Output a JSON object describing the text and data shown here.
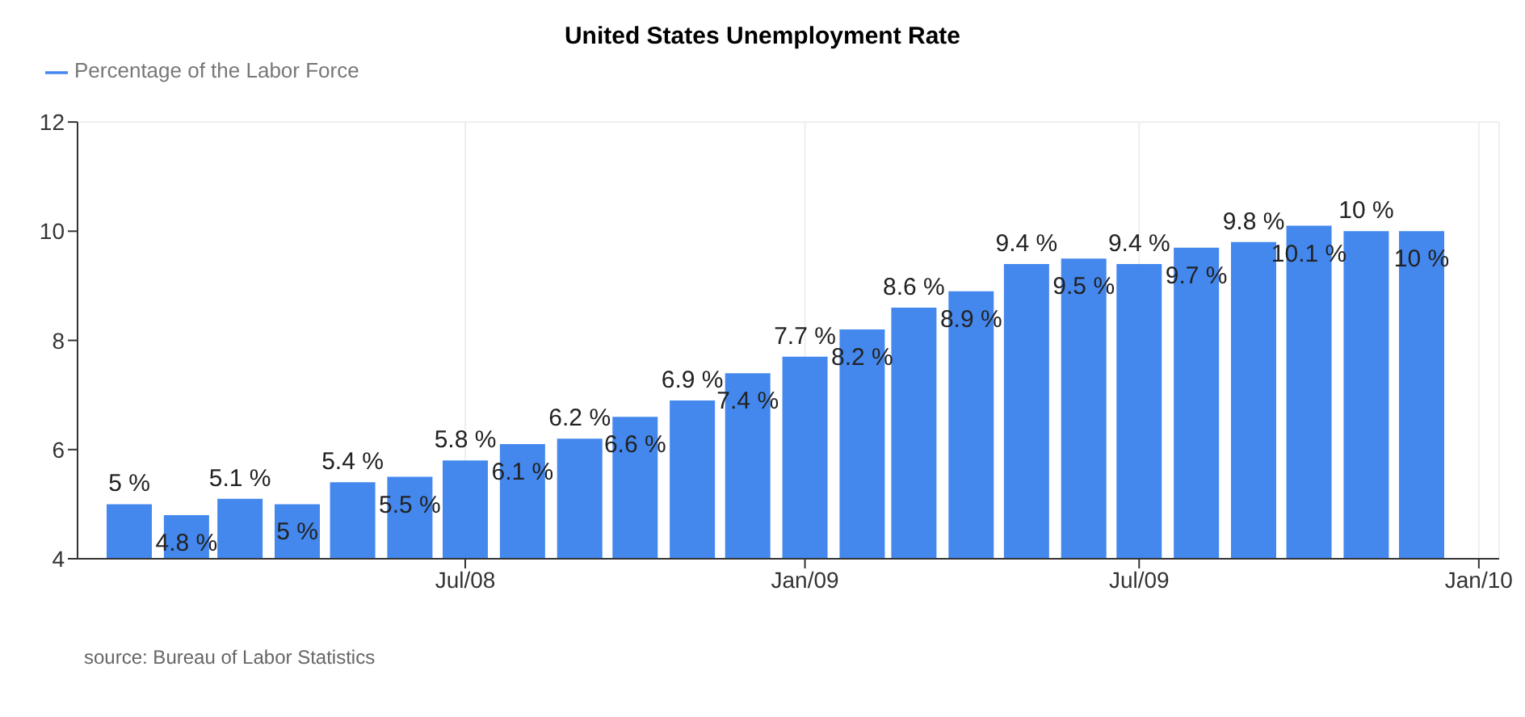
{
  "chart_data": {
    "type": "bar",
    "title": "United States Unemployment Rate",
    "x": [
      "2008-01",
      "2008-02",
      "2008-03",
      "2008-04",
      "2008-05",
      "2008-06",
      "2008-07",
      "2008-08",
      "2008-09",
      "2008-10",
      "2008-11",
      "2008-12",
      "2009-01",
      "2009-02",
      "2009-03",
      "2009-04",
      "2009-05",
      "2009-06",
      "2009-07",
      "2009-08",
      "2009-09",
      "2009-10",
      "2009-11",
      "2009-12"
    ],
    "series": [
      {
        "name": "Percentage of the Labor Force",
        "color": "#4488ee",
        "values": [
          5,
          4.8,
          5.1,
          5,
          5.4,
          5.5,
          5.8,
          6.1,
          6.2,
          6.6,
          6.9,
          7.4,
          7.7,
          8.2,
          8.6,
          8.9,
          9.4,
          9.5,
          9.4,
          9.7,
          9.8,
          10.1,
          10,
          10
        ],
        "value_labels": [
          "5 %",
          "4.8 %",
          "5.1 %",
          "5 %",
          "5.4 %",
          "5.5 %",
          "5.8 %",
          "6.1 %",
          "6.2 %",
          "6.6 %",
          "6.9 %",
          "7.4 %",
          "7.7 %",
          "8.2 %",
          "8.6 %",
          "8.9 %",
          "9.4 %",
          "9.5 %",
          "9.4 %",
          "9.7 %",
          "9.8 %",
          "10.1 %",
          "10 %",
          "10 %"
        ]
      }
    ],
    "xlim": [
      "2007-12-04",
      "2010-01-12"
    ],
    "xticks": [
      {
        "value": "2008-07",
        "label": "Jul/08"
      },
      {
        "value": "2009-01",
        "label": "Jan/09"
      },
      {
        "value": "2009-07",
        "label": "Jul/09"
      },
      {
        "value": "2010-01",
        "label": "Jan/10"
      }
    ],
    "ylim": [
      4,
      12
    ],
    "yticks": [
      4,
      6,
      8,
      10,
      12
    ],
    "grid": true,
    "legend": "top left",
    "annotations": [
      "source: Bureau of Labor Statistics"
    ]
  }
}
